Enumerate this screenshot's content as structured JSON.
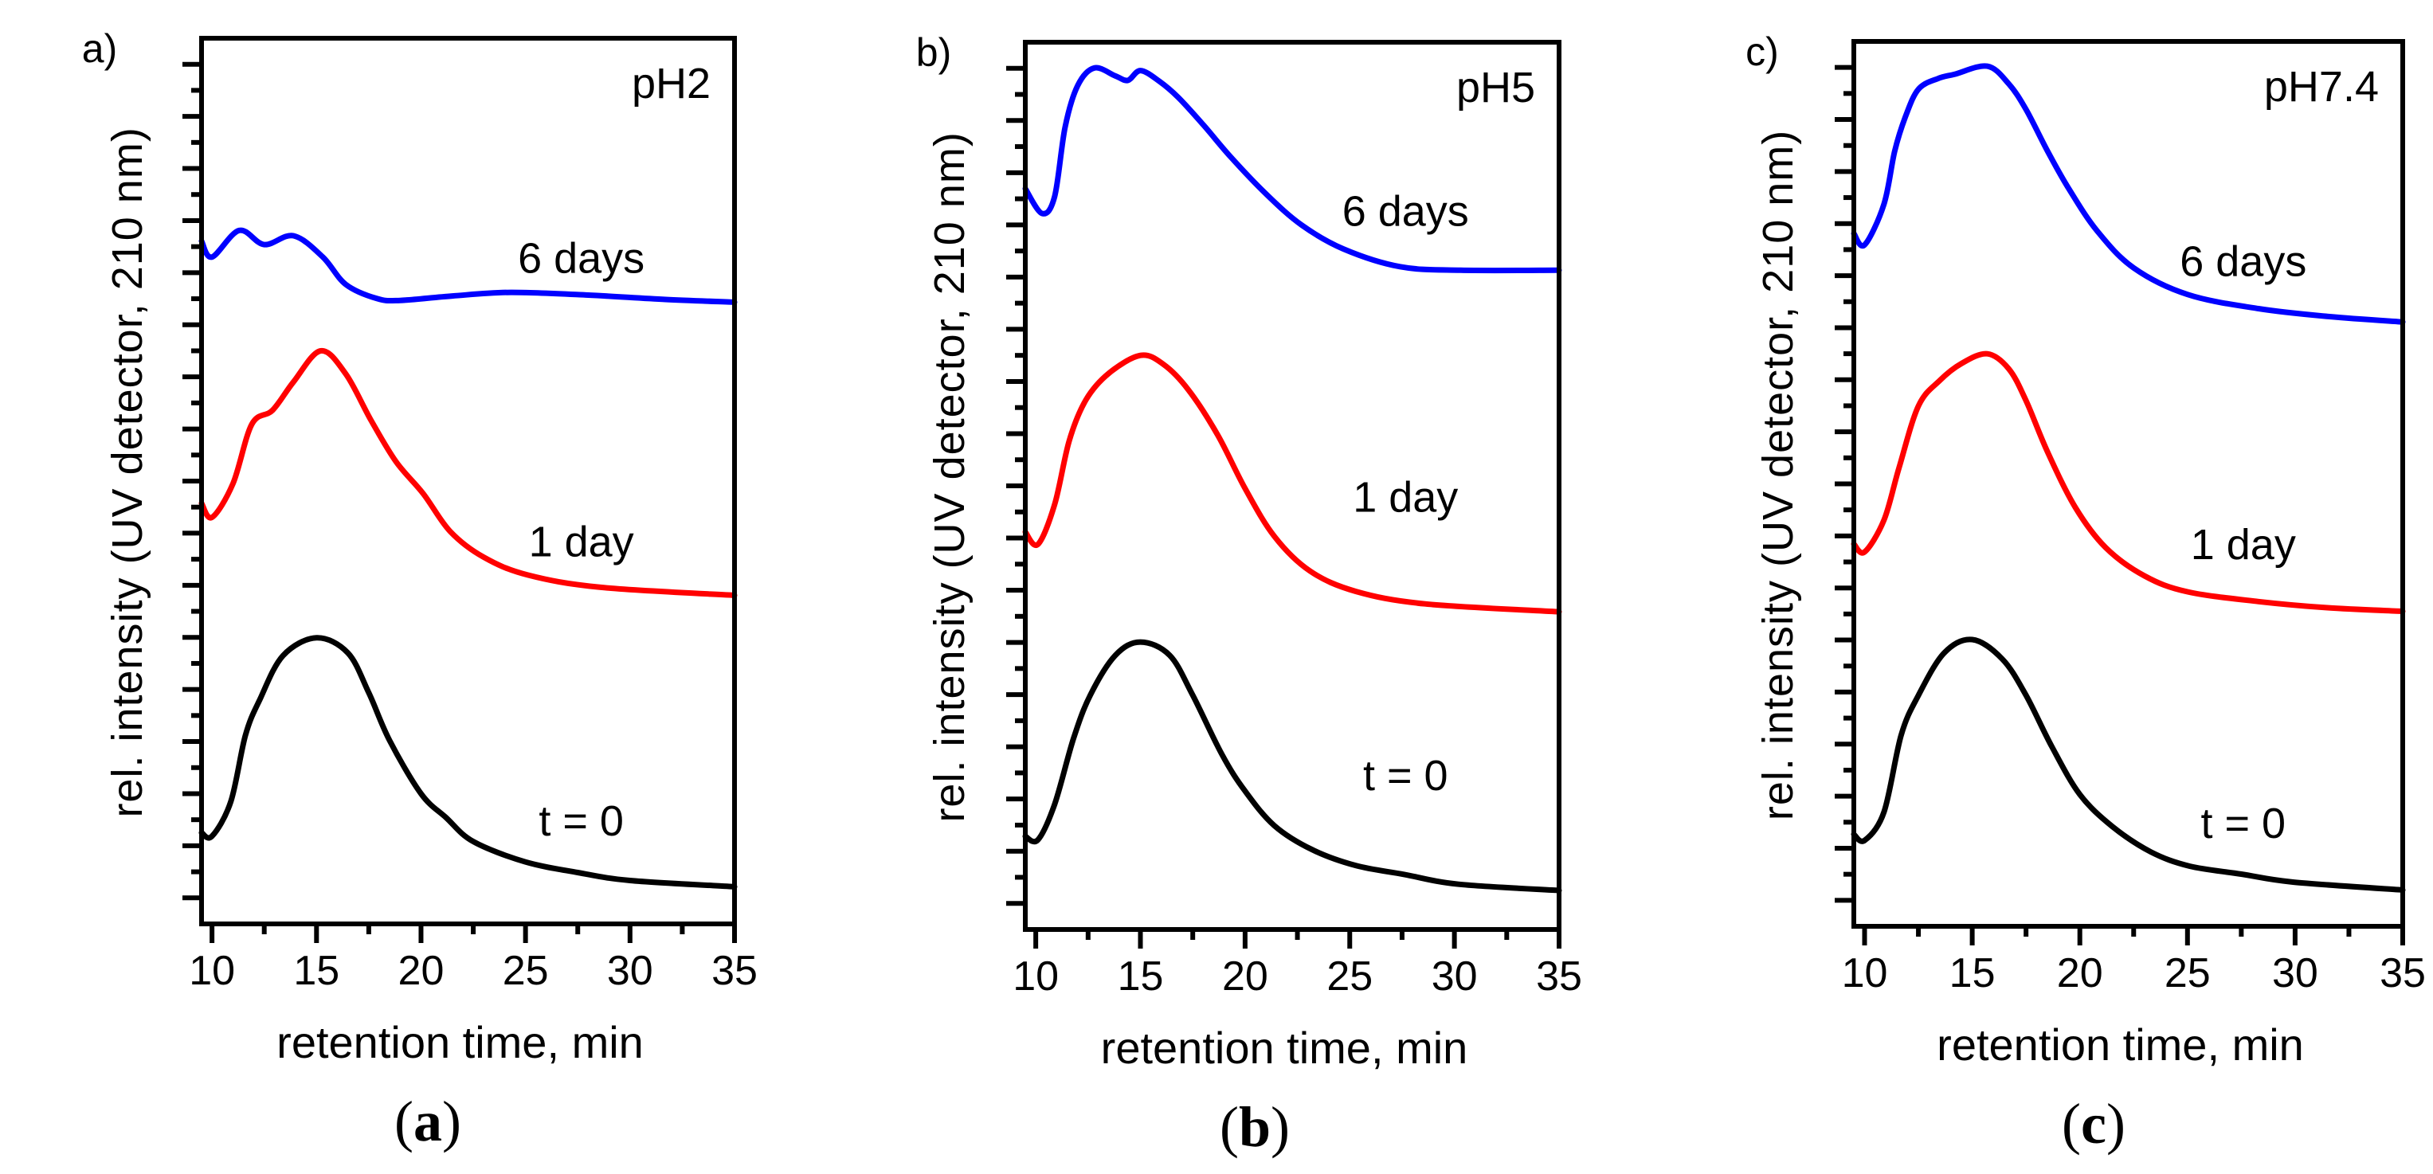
{
  "chart_data": [
    {
      "type": "line",
      "panel_tag": "a)",
      "condition": "pH2",
      "caption": "a",
      "xlabel": "retention time, min",
      "ylabel": "rel. intensity (UV detector, 210 nm)",
      "xlim": [
        9.5,
        35
      ],
      "ylim": [
        0,
        1
      ],
      "x_ticks": [
        10,
        15,
        20,
        25,
        30,
        35
      ],
      "x_minor_step": 2.5,
      "y_tick_count": 34,
      "y_tick_labels": false,
      "grid": false,
      "series": [
        {
          "name": "6 days",
          "color": "#0000ff",
          "x": [
            9.5,
            10.0,
            11.3,
            12.5,
            13.9,
            15.3,
            16.4,
            17.9,
            19.0,
            21.5,
            24.3,
            28.0,
            31.7,
            35.0
          ],
          "y": [
            0.771,
            0.753,
            0.783,
            0.767,
            0.777,
            0.753,
            0.722,
            0.706,
            0.704,
            0.709,
            0.713,
            0.71,
            0.705,
            0.702
          ],
          "label_pos": [
            25.0,
            0.735
          ]
        },
        {
          "name": "1 day",
          "color": "#ff0000",
          "x": [
            9.5,
            10.0,
            11.0,
            11.9,
            12.9,
            13.9,
            15.2,
            16.4,
            17.6,
            18.8,
            20.1,
            21.4,
            23.0,
            25.1,
            28.6,
            35.0
          ],
          "y": [
            0.475,
            0.459,
            0.497,
            0.564,
            0.58,
            0.612,
            0.647,
            0.621,
            0.569,
            0.522,
            0.486,
            0.443,
            0.414,
            0.394,
            0.38,
            0.371
          ],
          "label_pos": [
            25.0,
            0.415
          ]
        },
        {
          "name": "t = 0",
          "color": "#000000",
          "x": [
            9.5,
            10.0,
            10.9,
            11.6,
            12.3,
            13.4,
            15.0,
            16.5,
            17.5,
            18.5,
            20.0,
            21.2,
            22.5,
            25.0,
            27.5,
            30.0,
            35.0
          ],
          "y": [
            0.103,
            0.099,
            0.138,
            0.213,
            0.254,
            0.303,
            0.323,
            0.306,
            0.261,
            0.207,
            0.147,
            0.12,
            0.093,
            0.07,
            0.058,
            0.049,
            0.042
          ],
          "label_pos": [
            25.0,
            0.1
          ]
        }
      ]
    },
    {
      "type": "line",
      "panel_tag": "b)",
      "condition": "pH5",
      "caption": "b",
      "xlabel": "retention time, min",
      "ylabel": "rel. intensity (UV detector, 210 nm)",
      "xlim": [
        9.5,
        35
      ],
      "ylim": [
        0,
        1
      ],
      "x_ticks": [
        10,
        15,
        20,
        25,
        30,
        35
      ],
      "x_minor_step": 2.5,
      "y_tick_count": 34,
      "y_tick_labels": false,
      "grid": false,
      "series": [
        {
          "name": "6 days",
          "color": "#0000ff",
          "x": [
            9.5,
            10.3,
            10.9,
            11.4,
            12.0,
            12.8,
            13.8,
            14.4,
            15.0,
            15.9,
            16.8,
            18.0,
            19.3,
            21.0,
            22.7,
            24.7,
            27.4,
            30.3,
            35.0
          ],
          "y": [
            0.835,
            0.807,
            0.826,
            0.904,
            0.951,
            0.971,
            0.962,
            0.957,
            0.968,
            0.956,
            0.938,
            0.907,
            0.871,
            0.829,
            0.794,
            0.767,
            0.747,
            0.743,
            0.743
          ],
          "label_pos": [
            25.0,
            0.793
          ]
        },
        {
          "name": "1 day",
          "color": "#ff0000",
          "x": [
            9.5,
            10.1,
            10.9,
            11.6,
            12.4,
            13.5,
            15.0,
            16.1,
            17.3,
            18.7,
            20.0,
            21.4,
            23.1,
            25.3,
            28.6,
            35.0
          ],
          "y": [
            0.448,
            0.434,
            0.479,
            0.551,
            0.597,
            0.627,
            0.647,
            0.637,
            0.608,
            0.557,
            0.497,
            0.443,
            0.404,
            0.381,
            0.367,
            0.358
          ],
          "label_pos": [
            25.0,
            0.471
          ]
        },
        {
          "name": "t = 0",
          "color": "#000000",
          "x": [
            9.5,
            10.1,
            10.9,
            11.8,
            12.6,
            13.8,
            15.0,
            16.4,
            17.5,
            18.9,
            20.0,
            21.4,
            23.2,
            25.3,
            27.6,
            30.2,
            35.0
          ],
          "y": [
            0.105,
            0.101,
            0.141,
            0.215,
            0.264,
            0.309,
            0.324,
            0.309,
            0.264,
            0.197,
            0.156,
            0.117,
            0.09,
            0.072,
            0.062,
            0.051,
            0.044
          ],
          "label_pos": [
            25.0,
            0.157
          ]
        }
      ]
    },
    {
      "type": "line",
      "panel_tag": "c)",
      "condition": "pH7.4",
      "caption": "c",
      "xlabel": "retention time, min",
      "ylabel": "rel. intensity (UV detector, 210 nm)",
      "xlim": [
        9.5,
        35
      ],
      "ylim": [
        0,
        1
      ],
      "x_ticks": [
        10,
        15,
        20,
        25,
        30,
        35
      ],
      "x_minor_step": 2.5,
      "y_tick_count": 34,
      "y_tick_labels": false,
      "grid": false,
      "series": [
        {
          "name": "6 days",
          "color": "#0000ff",
          "x": [
            9.5,
            10.0,
            10.9,
            11.4,
            11.9,
            12.5,
            13.4,
            14.2,
            15.7,
            16.7,
            17.5,
            18.5,
            19.5,
            20.8,
            22.5,
            25.0,
            28.3,
            31.6,
            35.0
          ],
          "y": [
            0.783,
            0.77,
            0.816,
            0.876,
            0.915,
            0.946,
            0.958,
            0.963,
            0.972,
            0.952,
            0.923,
            0.876,
            0.833,
            0.786,
            0.744,
            0.714,
            0.698,
            0.689,
            0.683
          ],
          "label_pos": [
            25.0,
            0.735
          ]
        },
        {
          "name": "1 day",
          "color": "#ff0000",
          "x": [
            9.5,
            10.0,
            10.9,
            11.6,
            12.5,
            13.5,
            14.5,
            15.7,
            16.7,
            17.5,
            18.5,
            19.8,
            21.2,
            23.0,
            25.0,
            28.3,
            31.5,
            35.0
          ],
          "y": [
            0.432,
            0.423,
            0.459,
            0.518,
            0.588,
            0.617,
            0.636,
            0.647,
            0.63,
            0.594,
            0.536,
            0.473,
            0.428,
            0.396,
            0.378,
            0.367,
            0.36,
            0.356
          ],
          "label_pos": [
            25.0,
            0.415
          ]
        },
        {
          "name": "t = 0",
          "color": "#000000",
          "x": [
            9.5,
            10.0,
            10.9,
            11.7,
            12.5,
            13.7,
            15.0,
            16.4,
            17.5,
            18.7,
            20.0,
            21.5,
            23.3,
            25.1,
            27.5,
            29.9,
            35.0
          ],
          "y": [
            0.104,
            0.097,
            0.129,
            0.216,
            0.261,
            0.309,
            0.324,
            0.302,
            0.261,
            0.203,
            0.149,
            0.113,
            0.084,
            0.068,
            0.059,
            0.05,
            0.041
          ],
          "label_pos": [
            25.0,
            0.1
          ]
        }
      ]
    }
  ]
}
